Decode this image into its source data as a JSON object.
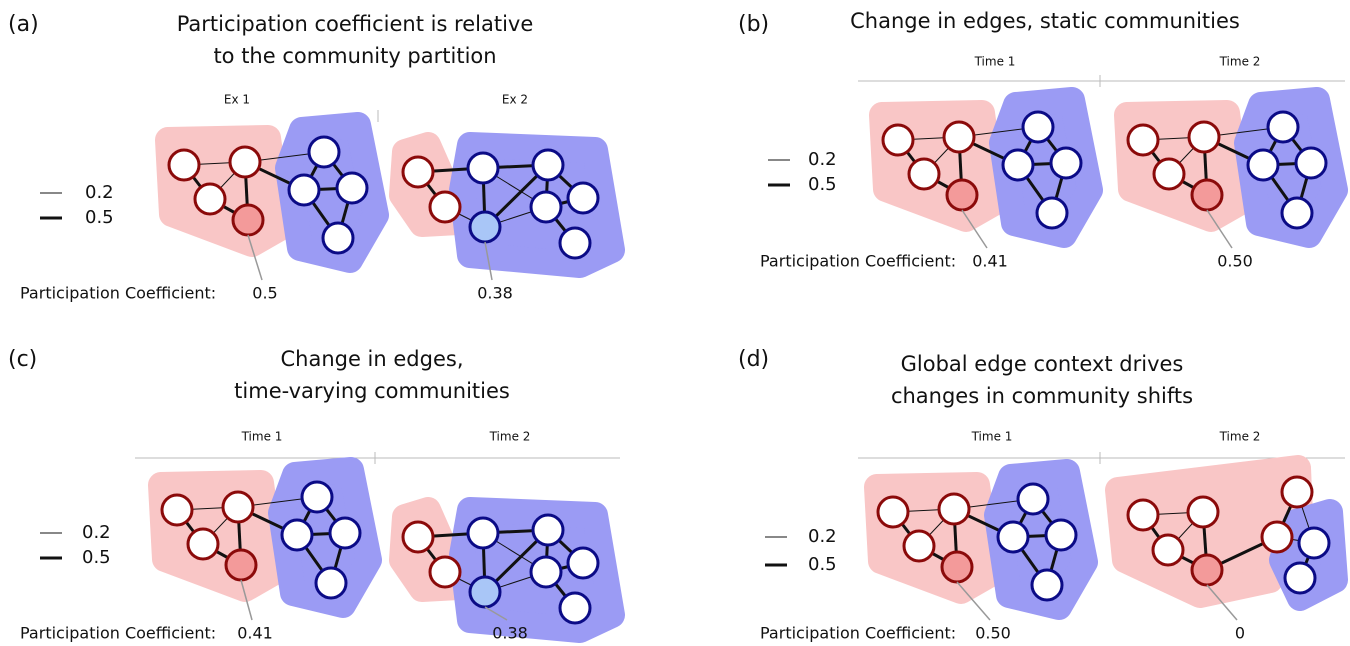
{
  "panels": [
    {
      "letter": "(a)",
      "title": [
        "Participation coefficient is relative",
        "to the community partition"
      ],
      "columns": [
        "Ex 1",
        "Ex 2"
      ],
      "legend": [
        "0.2",
        "0.5"
      ],
      "coefficient_label": "Participation Coefficient:",
      "coefficients": [
        "0.5",
        "0.38"
      ]
    },
    {
      "letter": "(b)",
      "title": [
        "Change in edges, static communities"
      ],
      "columns": [
        "Time 1",
        "Time 2"
      ],
      "legend": [
        "0.2",
        "0.5"
      ],
      "coefficient_label": "Participation Coefficient:",
      "coefficients": [
        "0.41",
        "0.50"
      ]
    },
    {
      "letter": "(c)",
      "title": [
        "Change in edges,",
        "time-varying communities"
      ],
      "columns": [
        "Time 1",
        "Time 2"
      ],
      "legend": [
        "0.2",
        "0.5"
      ],
      "coefficient_label": "Participation Coefficient:",
      "coefficients": [
        "0.41",
        "0.38"
      ]
    },
    {
      "letter": "(d)",
      "title": [
        "Global edge context drives",
        "changes in community shifts"
      ],
      "columns": [
        "Time 1",
        "Time 2"
      ],
      "legend": [
        "0.2",
        "0.5"
      ],
      "coefficient_label": "Participation Coefficient:",
      "coefficients": [
        "0.50",
        "0"
      ]
    }
  ]
}
